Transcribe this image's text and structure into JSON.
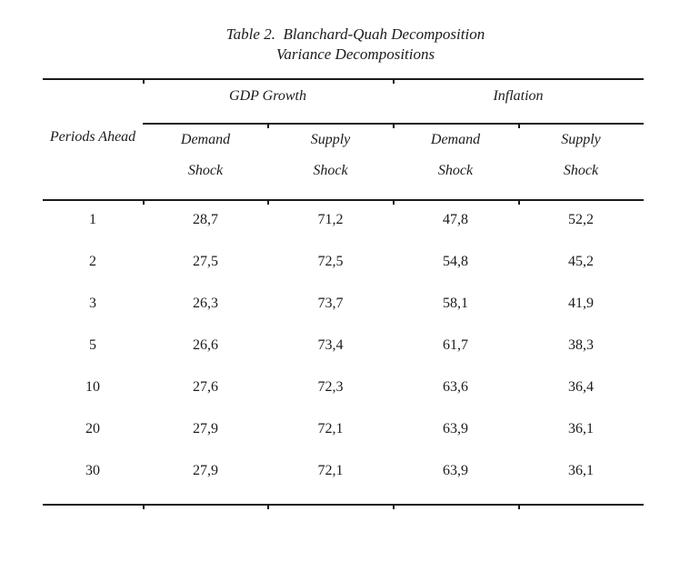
{
  "title": {
    "line1": "Table 2.  Blanchard-Quah Decomposition",
    "line2": "Variance Decompositions"
  },
  "table": {
    "row_header": "Periods Ahead",
    "group_headers": [
      {
        "label": "GDP Growth"
      },
      {
        "label": "Inflation"
      }
    ],
    "column_headers": [
      {
        "line1": "Demand",
        "line2": "Shock"
      },
      {
        "line1": "Supply",
        "line2": "Shock"
      },
      {
        "line1": "Demand",
        "line2": "Shock"
      },
      {
        "line1": "Supply",
        "line2": "Shock"
      }
    ],
    "rows": [
      {
        "period": "1",
        "values": [
          "28,7",
          "71,2",
          "47,8",
          "52,2"
        ]
      },
      {
        "period": "2",
        "values": [
          "27,5",
          "72,5",
          "54,8",
          "45,2"
        ]
      },
      {
        "period": "3",
        "values": [
          "26,3",
          "73,7",
          "58,1",
          "41,9"
        ]
      },
      {
        "period": "5",
        "values": [
          "26,6",
          "73,4",
          "61,7",
          "38,3"
        ]
      },
      {
        "period": "10",
        "values": [
          "27,6",
          "72,3",
          "63,6",
          "36,4"
        ]
      },
      {
        "period": "20",
        "values": [
          "27,9",
          "72,1",
          "63,9",
          "36,1"
        ]
      },
      {
        "period": "30",
        "values": [
          "27,9",
          "72,1",
          "63,9",
          "36,1"
        ]
      }
    ]
  },
  "colors": {
    "text": "#1b1b1b",
    "rule": "#1b1b1b",
    "background": "#ffffff"
  }
}
